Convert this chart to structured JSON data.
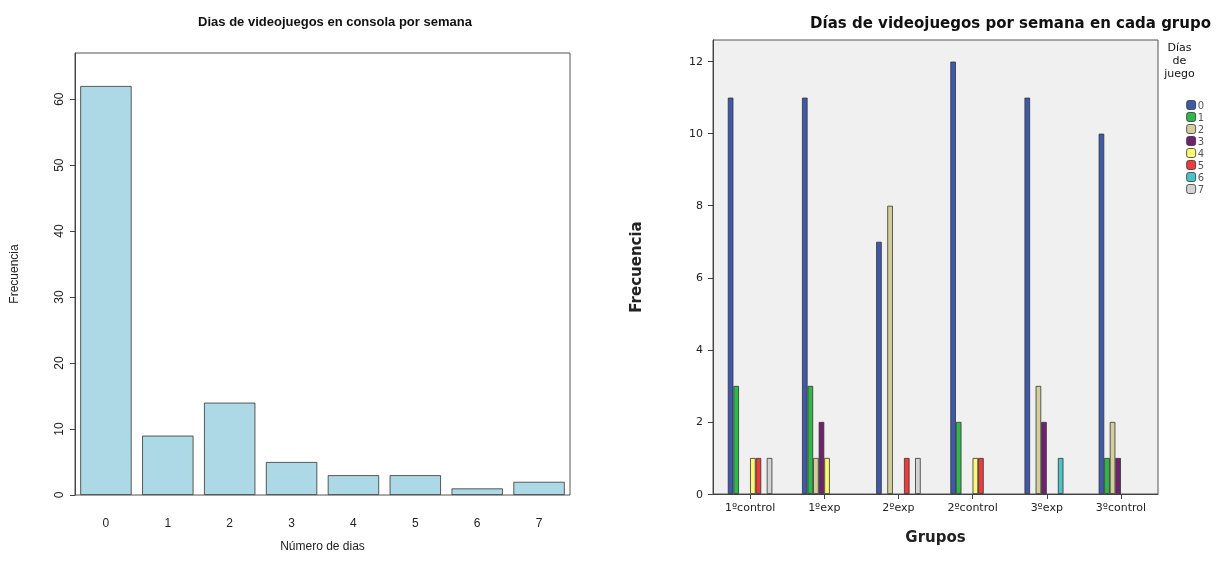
{
  "chart_data": [
    {
      "type": "bar",
      "title": "Dias de videojuegos en consola por semana",
      "xlabel": "Número de dias",
      "ylabel": "Frecuencia",
      "categories": [
        "0",
        "1",
        "2",
        "3",
        "4",
        "5",
        "6",
        "7"
      ],
      "values": [
        62,
        9,
        14,
        5,
        3,
        3,
        1,
        2
      ],
      "color": "#add8e6",
      "ylim": [
        0,
        67
      ],
      "yticks": [
        0,
        10,
        20,
        30,
        40,
        50,
        60
      ],
      "grid": false,
      "legend": false
    },
    {
      "type": "bar",
      "title": "Días de videojuegos por semana en cada grupo",
      "xlabel": "Grupos",
      "ylabel": "Frecuencia",
      "legend_title": "Días de juego",
      "categories": [
        "1ºcontrol",
        "1ºexp",
        "2ºexp",
        "2ºcontrol",
        "3ºexp",
        "3ºcontrol"
      ],
      "series": [
        {
          "name": "0",
          "color": "#3e58ac",
          "values": [
            11,
            11,
            7,
            12,
            11,
            10
          ]
        },
        {
          "name": "1",
          "color": "#2eb848",
          "values": [
            3,
            3,
            null,
            2,
            null,
            1
          ]
        },
        {
          "name": "2",
          "color": "#d4cf9a",
          "values": [
            null,
            1,
            8,
            null,
            3,
            2
          ]
        },
        {
          "name": "3",
          "color": "#72216f",
          "values": [
            null,
            2,
            null,
            null,
            2,
            1
          ]
        },
        {
          "name": "4",
          "color": "#fbf873",
          "values": [
            1,
            1,
            null,
            1,
            null,
            null
          ]
        },
        {
          "name": "5",
          "color": "#ee3b3b",
          "values": [
            1,
            null,
            1,
            1,
            null,
            null
          ]
        },
        {
          "name": "6",
          "color": "#48c4c8",
          "values": [
            null,
            null,
            null,
            null,
            1,
            null
          ]
        },
        {
          "name": "7",
          "color": "#d3d3d3",
          "values": [
            1,
            null,
            1,
            null,
            null,
            null
          ]
        }
      ],
      "ylim": [
        0,
        12.6
      ],
      "yticks": [
        0,
        2,
        4,
        6,
        8,
        10,
        12
      ],
      "grid": false,
      "legend": "right"
    }
  ]
}
